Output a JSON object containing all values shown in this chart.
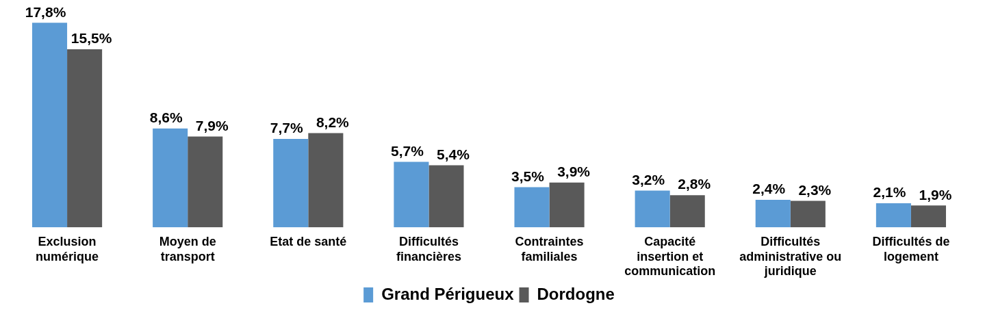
{
  "chart_data": {
    "type": "bar",
    "categories": [
      "Exclusion numérique",
      "Moyen de transport",
      "Etat de santé",
      "Difficultés financières",
      "Contraintes familiales",
      "Capacité insertion et communication",
      "Difficultés administrative ou juridique",
      "Difficultés de logement"
    ],
    "series": [
      {
        "name": "Grand Périgueux",
        "color": "#5b9bd5",
        "values": [
          17.8,
          8.6,
          7.7,
          5.7,
          3.5,
          3.2,
          2.4,
          2.1
        ],
        "value_labels": [
          "17,8%",
          "8,6%",
          "7,7%",
          "5,7%",
          "3,5%",
          "3,2%",
          "2,4%",
          "2,1%"
        ]
      },
      {
        "name": "Dordogne",
        "color": "#595959",
        "values": [
          15.5,
          7.9,
          8.2,
          5.4,
          3.9,
          2.8,
          2.3,
          1.9
        ],
        "value_labels": [
          "15,5%",
          "7,9%",
          "8,2%",
          "5,4%",
          "3,9%",
          "2,8%",
          "2,3%",
          "1,9%"
        ]
      }
    ],
    "legend": "bottom",
    "grid": false
  }
}
